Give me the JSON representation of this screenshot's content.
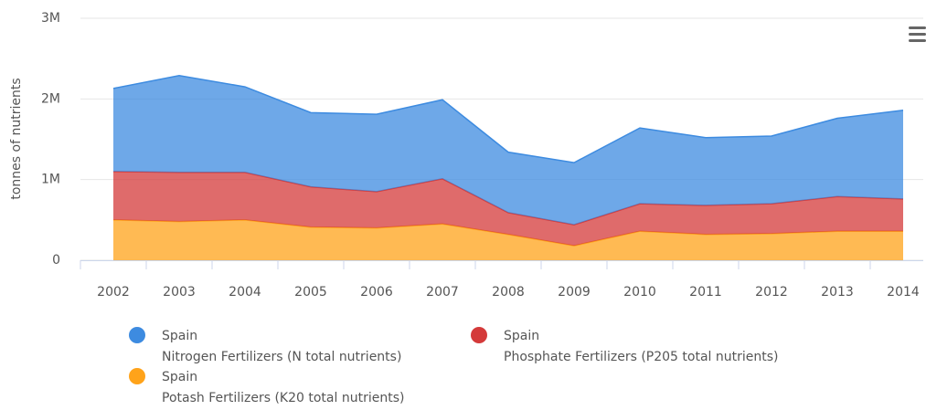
{
  "chart_data": {
    "type": "stacked-area",
    "y_label": "tonnes of nutrients",
    "categories": [
      "2002",
      "2003",
      "2004",
      "2005",
      "2006",
      "2007",
      "2008",
      "2009",
      "2010",
      "2011",
      "2012",
      "2013",
      "2014"
    ],
    "series": [
      {
        "name": "Spain",
        "item": "Nitrogen Fertilizers (N total nutrients)",
        "color": "#3d8be0",
        "values": [
          1030000,
          1200000,
          1060000,
          920000,
          960000,
          980000,
          750000,
          770000,
          940000,
          840000,
          840000,
          970000,
          1100000
        ]
      },
      {
        "name": "Spain",
        "item": "Phosphate Fertilizers (P205 total nutrients)",
        "color": "#d43a3a",
        "values": [
          600000,
          610000,
          590000,
          500000,
          450000,
          560000,
          270000,
          260000,
          340000,
          360000,
          370000,
          430000,
          400000
        ]
      },
      {
        "name": "Spain",
        "item": "Potash Fertilizers (K20 total nutrients)",
        "color": "#ffa31a",
        "values": [
          500000,
          480000,
          500000,
          410000,
          400000,
          450000,
          320000,
          180000,
          360000,
          320000,
          330000,
          360000,
          360000
        ]
      }
    ],
    "ylim": [
      0,
      3000000
    ],
    "yticks": [
      0,
      {
        "value": 1000000,
        "label": "1M"
      },
      {
        "value": 2000000,
        "label": "2M"
      },
      {
        "value": 3000000,
        "label": "3M"
      }
    ],
    "grid": true
  }
}
